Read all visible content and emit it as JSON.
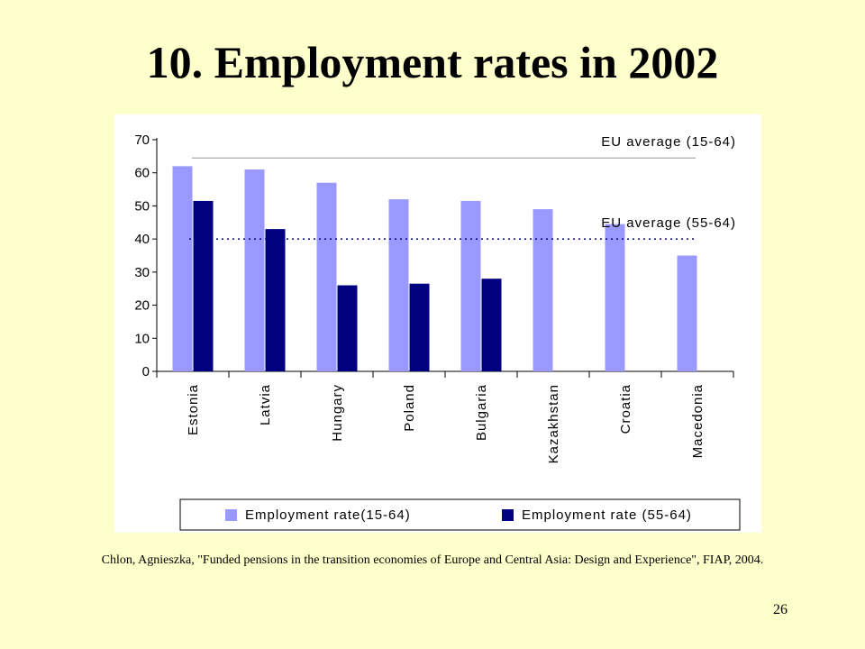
{
  "slide": {
    "title": "10. Employment rates in 2002",
    "citation": "Chlon, Agnieszka, \"Funded pensions in the transition economies of Europe and Central Asia: Design and Experience\", FIAP, 2004.",
    "page_number": "26"
  },
  "chart_data": {
    "type": "bar",
    "categories": [
      "Estonia",
      "Latvia",
      "Hungary",
      "Poland",
      "Bulgaria",
      "Kazakhstan",
      "Croatia",
      "Macedonia"
    ],
    "series": [
      {
        "name": "Employment rate(15-64)",
        "color": "#9999ff",
        "values": [
          62,
          61,
          57,
          52,
          51.5,
          49,
          44.5,
          35
        ]
      },
      {
        "name": "Employment rate (55-64)",
        "color": "#000080",
        "values": [
          51.5,
          43,
          26,
          26.5,
          28,
          null,
          null,
          null
        ]
      }
    ],
    "reference_lines": [
      {
        "label": "EU average (15-64)",
        "value": 64.5,
        "style": "solid",
        "color": "#999999"
      },
      {
        "label": "EU average (55-64)",
        "value": 40,
        "style": "dotted",
        "color": "#000080"
      }
    ],
    "yticks": [
      "0",
      "10",
      "20",
      "30",
      "40",
      "50",
      "60",
      "70"
    ],
    "ylim": [
      0,
      70
    ],
    "legend_position": "bottom",
    "grid": false
  }
}
